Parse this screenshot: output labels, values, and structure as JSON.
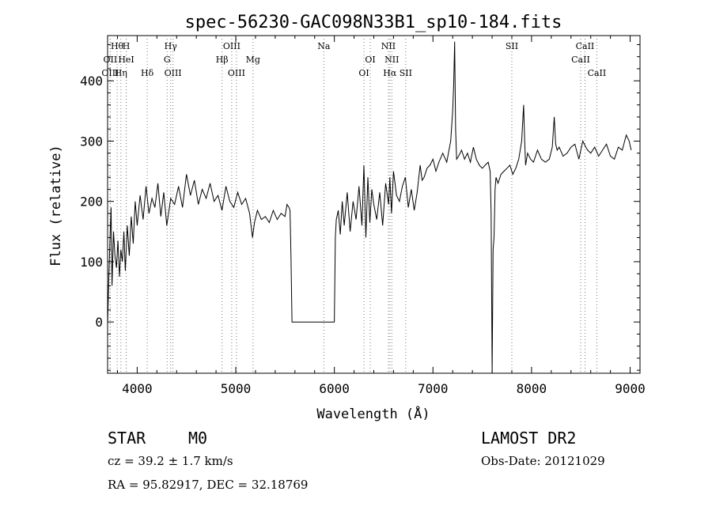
{
  "chart_data": {
    "type": "line",
    "title": "spec-56230-GAC098N33B1_sp10-184.fits",
    "xlabel": "Wavelength (Å)",
    "ylabel": "Flux (relative)",
    "xlim": [
      3700,
      9100
    ],
    "ylim": [
      -85,
      475
    ],
    "xticks": [
      4000,
      5000,
      6000,
      7000,
      8000,
      9000
    ],
    "yticks": [
      0,
      100,
      200,
      300,
      400
    ],
    "grid": false,
    "legend": "none",
    "line_color": "#000000",
    "spectrum_x": [
      3700,
      3712,
      3725,
      3735,
      3745,
      3760,
      3775,
      3790,
      3805,
      3820,
      3835,
      3850,
      3865,
      3880,
      3900,
      3920,
      3940,
      3960,
      3980,
      4000,
      4030,
      4060,
      4090,
      4120,
      4150,
      4180,
      4210,
      4240,
      4270,
      4300,
      4340,
      4380,
      4420,
      4460,
      4500,
      4540,
      4580,
      4620,
      4660,
      4700,
      4740,
      4780,
      4820,
      4860,
      4880,
      4900,
      4940,
      4980,
      5020,
      5060,
      5100,
      5140,
      5170,
      5190,
      5220,
      5260,
      5300,
      5340,
      5380,
      5420,
      5460,
      5500,
      5520,
      5540,
      5550,
      5560,
      5570,
      5580,
      6000,
      6010,
      6020,
      6040,
      6060,
      6080,
      6100,
      6130,
      6160,
      6190,
      6220,
      6250,
      6280,
      6300,
      6320,
      6340,
      6360,
      6380,
      6400,
      6430,
      6460,
      6490,
      6520,
      6550,
      6563,
      6580,
      6600,
      6630,
      6660,
      6690,
      6720,
      6750,
      6780,
      6810,
      6840,
      6870,
      6890,
      6910,
      6940,
      6970,
      7000,
      7030,
      7060,
      7100,
      7140,
      7180,
      7200,
      7210,
      7220,
      7230,
      7240,
      7260,
      7290,
      7320,
      7350,
      7380,
      7410,
      7440,
      7470,
      7500,
      7530,
      7560,
      7580,
      7590,
      7600,
      7610,
      7620,
      7630,
      7640,
      7660,
      7690,
      7720,
      7750,
      7780,
      7810,
      7840,
      7870,
      7900,
      7920,
      7930,
      7940,
      7960,
      7990,
      8020,
      8060,
      8100,
      8140,
      8180,
      8210,
      8230,
      8245,
      8260,
      8280,
      8320,
      8360,
      8400,
      8440,
      8480,
      8520,
      8550,
      8570,
      8600,
      8640,
      8680,
      8720,
      8760,
      8800,
      8840,
      8880,
      8920,
      8960,
      8990,
      9010,
      9030,
      9050
    ],
    "spectrum_y": [
      -5,
      70,
      140,
      190,
      60,
      150,
      110,
      90,
      135,
      75,
      120,
      100,
      150,
      85,
      160,
      110,
      175,
      130,
      200,
      160,
      210,
      170,
      225,
      180,
      205,
      190,
      230,
      175,
      215,
      160,
      205,
      195,
      225,
      190,
      245,
      210,
      235,
      195,
      220,
      205,
      230,
      200,
      210,
      185,
      205,
      225,
      200,
      190,
      215,
      195,
      205,
      180,
      140,
      165,
      185,
      170,
      175,
      165,
      185,
      170,
      180,
      175,
      195,
      190,
      185,
      110,
      0,
      0,
      0,
      140,
      170,
      185,
      145,
      200,
      160,
      215,
      150,
      200,
      170,
      225,
      160,
      260,
      140,
      240,
      165,
      220,
      195,
      170,
      215,
      160,
      230,
      195,
      240,
      180,
      250,
      210,
      200,
      225,
      240,
      190,
      220,
      185,
      215,
      260,
      235,
      240,
      255,
      260,
      270,
      250,
      265,
      280,
      265,
      300,
      350,
      395,
      465,
      320,
      270,
      275,
      285,
      270,
      280,
      265,
      290,
      270,
      260,
      255,
      260,
      265,
      250,
      180,
      -85,
      120,
      140,
      220,
      240,
      230,
      245,
      250,
      255,
      260,
      245,
      255,
      270,
      300,
      360,
      300,
      260,
      280,
      270,
      265,
      285,
      270,
      265,
      270,
      290,
      340,
      295,
      285,
      290,
      275,
      280,
      290,
      295,
      270,
      300,
      290,
      285,
      280,
      290,
      275,
      285,
      295,
      275,
      270,
      290,
      285,
      310,
      300,
      285
    ]
  },
  "spectral_lines": [
    {
      "name": "Hθ",
      "wl": 3797,
      "row": 0
    },
    {
      "name": "H",
      "wl": 3889,
      "row": 0
    },
    {
      "name": "OII",
      "wl": 3727,
      "row": 1
    },
    {
      "name": "HeI",
      "wl": 3889,
      "row": 1
    },
    {
      "name": "OIII",
      "wl": 3727,
      "row": 2
    },
    {
      "name": "Hη",
      "wl": 3835,
      "row": 2
    },
    {
      "name": "Hδ",
      "wl": 4102,
      "row": 2
    },
    {
      "name": "Hγ",
      "wl": 4340,
      "row": 0
    },
    {
      "name": "G",
      "wl": 4304,
      "row": 1
    },
    {
      "name": "OIII",
      "wl": 4363,
      "row": 2
    },
    {
      "name": "OIII",
      "wl": 4959,
      "row": 0
    },
    {
      "name": "Hβ",
      "wl": 4861,
      "row": 1
    },
    {
      "name": "Mg",
      "wl": 5175,
      "row": 1
    },
    {
      "name": "OIII",
      "wl": 5007,
      "row": 2
    },
    {
      "name": "Na",
      "wl": 5893,
      "row": 0
    },
    {
      "name": "OI",
      "wl": 6364,
      "row": 1
    },
    {
      "name": "OI",
      "wl": 6300,
      "row": 2
    },
    {
      "name": "NII",
      "wl": 6548,
      "row": 0
    },
    {
      "name": "NII",
      "wl": 6583,
      "row": 1
    },
    {
      "name": "Hα",
      "wl": 6563,
      "row": 2
    },
    {
      "name": "SII",
      "wl": 6724,
      "row": 2
    },
    {
      "name": "SII",
      "wl": 7800,
      "row": 0
    },
    {
      "name": "CaII",
      "wl": 8542,
      "row": 0
    },
    {
      "name": "CaII",
      "wl": 8498,
      "row": 1
    },
    {
      "name": "CaII",
      "wl": 8662,
      "row": 2
    }
  ],
  "info": {
    "object_class": "STAR",
    "subclass": "M0",
    "survey": "LAMOST DR2",
    "redshift_text": "cz = 39.2 ± 1.7 km/s",
    "obs_date": "Obs-Date: 20121029",
    "coords": "RA =  95.82917, DEC =  32.18769"
  }
}
